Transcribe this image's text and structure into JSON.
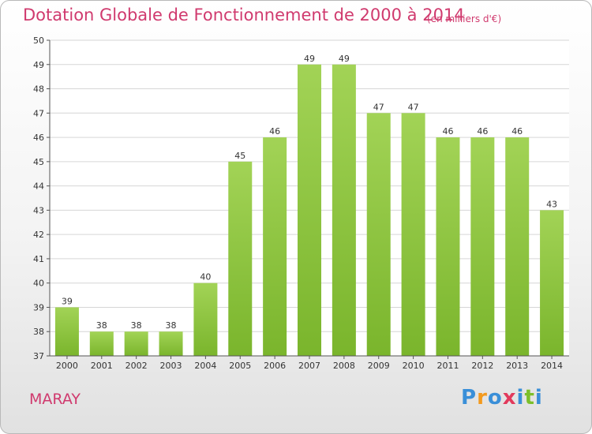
{
  "chart_data": {
    "type": "bar",
    "title": "Dotation Globale de Fonctionnement de 2000 à 2014",
    "unit_label": "(en milliers d'€)",
    "categories": [
      "2000",
      "2001",
      "2002",
      "2003",
      "2004",
      "2005",
      "2006",
      "2007",
      "2008",
      "2009",
      "2010",
      "2011",
      "2012",
      "2013",
      "2014"
    ],
    "values": [
      39,
      38,
      38,
      38,
      40,
      45,
      46,
      49,
      49,
      47,
      47,
      46,
      46,
      46,
      43
    ],
    "ylim": [
      37,
      50
    ],
    "yticks": [
      37,
      38,
      39,
      40,
      41,
      42,
      43,
      44,
      45,
      46,
      47,
      48,
      49,
      50
    ],
    "grid": true,
    "bar_color": "#7ab52c",
    "xlabel": "",
    "ylabel": ""
  },
  "commune": "MARAY",
  "logo": {
    "letters": [
      "P",
      "r",
      "o",
      "x",
      "i",
      "t",
      "i"
    ],
    "colors": [
      "#3a8fd8",
      "#f39a1e",
      "#3a8fd8",
      "#e23a5c",
      "#3a8fd8",
      "#7cbf2a",
      "#3a8fd8"
    ]
  },
  "colors": {
    "title": "#d03a6e",
    "grid": "#d6d6d6",
    "axis": "#555555"
  }
}
